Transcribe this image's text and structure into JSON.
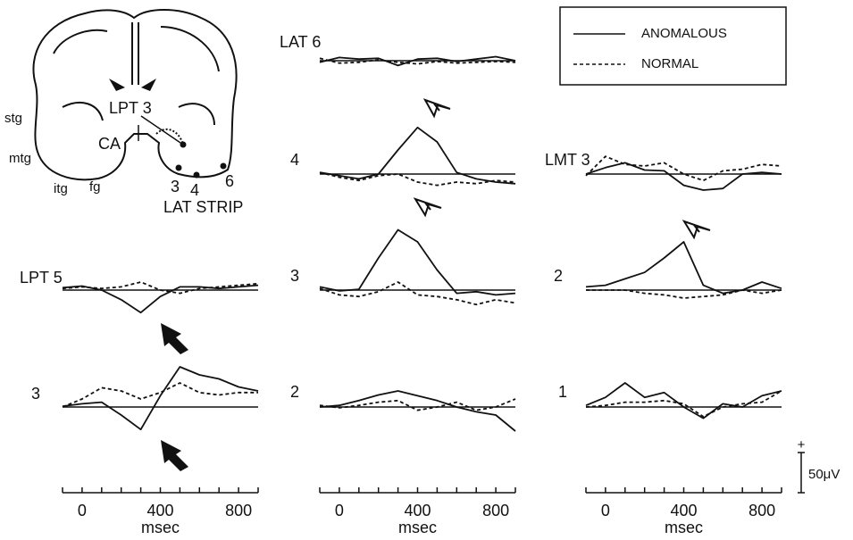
{
  "diagram": {
    "labels": [
      "stg",
      "mtg",
      "itg",
      "fg",
      "CA",
      "LPT 3",
      "3",
      "4",
      "6",
      "LAT STRIP"
    ]
  },
  "scale_bar": {
    "sign": "+",
    "label": "50μV",
    "value": 50
  },
  "chart_data": [
    {
      "type": "line",
      "label": "LAT 6",
      "xlim": [
        -100,
        900
      ],
      "x": [
        -100,
        0,
        100,
        200,
        300,
        400,
        500,
        600,
        700,
        800,
        900
      ],
      "series": [
        {
          "name": "ANOMALOUS",
          "color": "#111111",
          "dashed": false,
          "values": [
            -2,
            4,
            2,
            3,
            -6,
            2,
            3,
            -1,
            2,
            5,
            0
          ]
        },
        {
          "name": "NORMAL",
          "color": "#111111",
          "dashed": true,
          "values": [
            3,
            -3,
            -2,
            1,
            -2,
            -4,
            -1,
            -3,
            -2,
            -1,
            -2
          ]
        }
      ]
    },
    {
      "type": "line",
      "label": "4",
      "xlim": [
        -100,
        900
      ],
      "x": [
        -100,
        0,
        100,
        200,
        300,
        400,
        500,
        600,
        700,
        800,
        900
      ],
      "series": [
        {
          "name": "ANOMALOUS",
          "color": "#111111",
          "dashed": false,
          "values": [
            2,
            -2,
            -6,
            0,
            30,
            58,
            40,
            2,
            -6,
            -10,
            -12
          ]
        },
        {
          "name": "NORMAL",
          "color": "#111111",
          "dashed": true,
          "values": [
            2,
            -4,
            -8,
            -2,
            0,
            -10,
            -14,
            -10,
            -12,
            -8,
            -10
          ]
        }
      ]
    },
    {
      "type": "line",
      "label": "3",
      "xlim": [
        -100,
        900
      ],
      "x": [
        -100,
        0,
        100,
        200,
        300,
        400,
        500,
        600,
        700,
        800,
        900
      ],
      "series": [
        {
          "name": "ANOMALOUS",
          "color": "#111111",
          "dashed": false,
          "values": [
            4,
            -1,
            1,
            40,
            75,
            60,
            25,
            -4,
            -2,
            -6,
            -4
          ]
        },
        {
          "name": "NORMAL",
          "color": "#111111",
          "dashed": true,
          "values": [
            2,
            -6,
            -8,
            -2,
            10,
            -6,
            -8,
            -12,
            -18,
            -12,
            -16
          ]
        }
      ]
    },
    {
      "type": "line",
      "label": "2",
      "xlim": [
        -100,
        900
      ],
      "x": [
        -100,
        0,
        100,
        200,
        300,
        400,
        500,
        600,
        700,
        800,
        900
      ],
      "xticks": [
        0,
        400,
        800
      ],
      "xticks_minor": [
        -100,
        0,
        100,
        200,
        300,
        400,
        500,
        600,
        700,
        800,
        900
      ],
      "xlabel": "msec",
      "series": [
        {
          "name": "ANOMALOUS",
          "color": "#111111",
          "dashed": false,
          "values": [
            0,
            2,
            8,
            15,
            20,
            14,
            8,
            0,
            -6,
            -10,
            -30
          ]
        },
        {
          "name": "NORMAL",
          "color": "#111111",
          "dashed": true,
          "values": [
            2,
            -1,
            2,
            6,
            8,
            -4,
            0,
            6,
            -4,
            0,
            10
          ]
        }
      ]
    },
    {
      "type": "line",
      "label": "LPT 5",
      "xlim": [
        -100,
        900
      ],
      "x": [
        -100,
        0,
        100,
        200,
        300,
        400,
        500,
        600,
        700,
        800,
        900
      ],
      "series": [
        {
          "name": "ANOMALOUS",
          "color": "#111111",
          "dashed": false,
          "values": [
            3,
            5,
            0,
            -12,
            -28,
            -8,
            4,
            4,
            2,
            4,
            6
          ]
        },
        {
          "name": "NORMAL",
          "color": "#111111",
          "dashed": true,
          "values": [
            2,
            4,
            2,
            4,
            10,
            0,
            -4,
            2,
            4,
            6,
            8
          ]
        }
      ]
    },
    {
      "type": "line",
      "label": "3",
      "xlim": [
        -100,
        900
      ],
      "x": [
        -100,
        0,
        100,
        200,
        300,
        400,
        500,
        600,
        700,
        800,
        900
      ],
      "xticks": [
        0,
        400,
        800
      ],
      "xticks_minor": [
        -100,
        0,
        100,
        200,
        300,
        400,
        500,
        600,
        700,
        800,
        900
      ],
      "xlabel": "msec",
      "series": [
        {
          "name": "ANOMALOUS",
          "color": "#111111",
          "dashed": false,
          "values": [
            1,
            4,
            6,
            -10,
            -28,
            14,
            50,
            40,
            35,
            25,
            20
          ]
        },
        {
          "name": "NORMAL",
          "color": "#111111",
          "dashed": true,
          "values": [
            0,
            10,
            24,
            20,
            10,
            18,
            30,
            18,
            15,
            18,
            18
          ]
        }
      ]
    },
    {
      "type": "line",
      "label": "LMT 3",
      "xlim": [
        -100,
        900
      ],
      "x": [
        -100,
        0,
        100,
        200,
        300,
        400,
        500,
        600,
        700,
        800,
        900
      ],
      "series": [
        {
          "name": "ANOMALOUS",
          "color": "#111111",
          "dashed": false,
          "values": [
            0,
            8,
            14,
            5,
            4,
            -14,
            -20,
            -18,
            0,
            2,
            0
          ]
        },
        {
          "name": "NORMAL",
          "color": "#111111",
          "dashed": true,
          "values": [
            -2,
            22,
            12,
            10,
            14,
            0,
            -8,
            4,
            6,
            12,
            10
          ]
        }
      ]
    },
    {
      "type": "line",
      "label": "2",
      "xlim": [
        -100,
        900
      ],
      "x": [
        -100,
        0,
        100,
        200,
        300,
        400,
        500,
        600,
        700,
        800,
        900
      ],
      "series": [
        {
          "name": "ANOMALOUS",
          "color": "#111111",
          "dashed": false,
          "values": [
            4,
            6,
            14,
            22,
            40,
            60,
            6,
            -4,
            0,
            10,
            2
          ]
        },
        {
          "name": "NORMAL",
          "color": "#111111",
          "dashed": true,
          "values": [
            0,
            0,
            0,
            -4,
            -6,
            -10,
            -8,
            -6,
            0,
            -4,
            0
          ]
        }
      ]
    },
    {
      "type": "line",
      "label": "1",
      "xlim": [
        -100,
        900
      ],
      "x": [
        -100,
        0,
        100,
        200,
        300,
        400,
        500,
        600,
        700,
        800,
        900
      ],
      "xticks": [
        0,
        400,
        800
      ],
      "xticks_minor": [
        -100,
        0,
        100,
        200,
        300,
        400,
        500,
        600,
        700,
        800,
        900
      ],
      "xlabel": "msec",
      "series": [
        {
          "name": "ANOMALOUS",
          "color": "#111111",
          "dashed": false,
          "values": [
            2,
            12,
            30,
            12,
            18,
            0,
            -14,
            4,
            0,
            14,
            20
          ]
        },
        {
          "name": "NORMAL",
          "color": "#111111",
          "dashed": true,
          "values": [
            0,
            2,
            6,
            6,
            8,
            4,
            -12,
            0,
            4,
            6,
            20
          ]
        }
      ]
    }
  ]
}
